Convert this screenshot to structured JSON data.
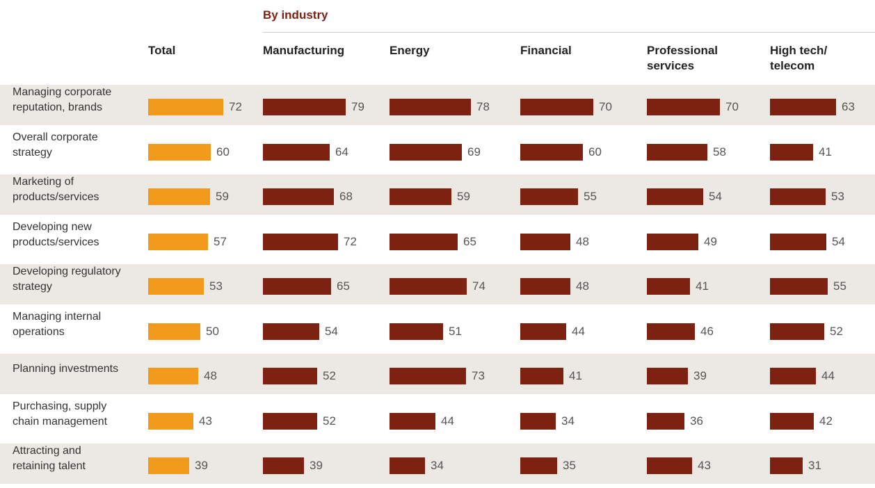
{
  "section_label": "By industry",
  "colors": {
    "total": "#f19a1c",
    "industry": "#7d2210",
    "band": "#ece9e4",
    "section": "#7d2210"
  },
  "chart_data": {
    "type": "bar",
    "orientation": "horizontal",
    "group_title": "By industry",
    "categories": [
      "Managing corporate\nreputation, brands",
      "Overall corporate\nstrategy",
      "Marketing of\nproducts/services",
      "Developing new\nproducts/services",
      "Developing regulatory\nstrategy",
      "Managing internal\noperations",
      "Planning investments",
      "Purchasing, supply\nchain management",
      "Attracting and\nretaining talent"
    ],
    "series": [
      {
        "name": "Total",
        "values": [
          72,
          60,
          59,
          57,
          53,
          50,
          48,
          43,
          39
        ]
      },
      {
        "name": "Manufacturing",
        "values": [
          79,
          64,
          68,
          72,
          65,
          54,
          52,
          52,
          39
        ]
      },
      {
        "name": "Energy",
        "values": [
          78,
          69,
          59,
          65,
          74,
          51,
          73,
          44,
          34
        ]
      },
      {
        "name": "Financial",
        "values": [
          70,
          60,
          55,
          48,
          48,
          44,
          41,
          34,
          35
        ]
      },
      {
        "name": "Professional\nservices",
        "values": [
          70,
          58,
          54,
          49,
          41,
          46,
          39,
          36,
          43
        ]
      },
      {
        "name": "High tech/\ntelecom",
        "values": [
          63,
          41,
          53,
          54,
          55,
          52,
          44,
          42,
          31
        ]
      }
    ]
  }
}
